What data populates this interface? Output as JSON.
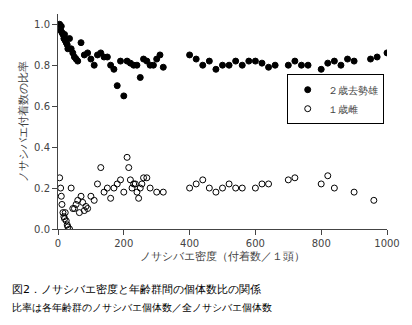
{
  "chart_data": {
    "type": "scatter",
    "xlabel": "ノサシバエ密度（付着数／１頭）",
    "ylabel": "ノサシバエ付着数の比率",
    "annotations": [
      "図2．ノサシバエ密度と年齢群間の個体数比の関係",
      "比率は各年齢群のノサシバエ個体数／全ノサシバエ個体数"
    ],
    "xlim": [
      0,
      1000
    ],
    "ylim": [
      0.0,
      1.05
    ],
    "xticks": [
      0,
      200,
      400,
      600,
      800,
      1000
    ],
    "yticks": [
      {
        "value": 0.0,
        "label": "0.0"
      },
      0.2,
      0.4,
      0.6,
      0.8,
      {
        "value": 1.0,
        "label": "1.0"
      }
    ],
    "grid": false,
    "legend": "right",
    "series": [
      {
        "name": "２歳去勢雄",
        "color": "#000000",
        "marker": "filled",
        "x": [
          5,
          8,
          10,
          12,
          15,
          18,
          20,
          22,
          25,
          28,
          30,
          35,
          40,
          45,
          50,
          55,
          60,
          70,
          80,
          90,
          100,
          110,
          120,
          130,
          140,
          150,
          160,
          170,
          180,
          190,
          200,
          210,
          220,
          230,
          240,
          250,
          260,
          270,
          280,
          290,
          300,
          310,
          320,
          400,
          420,
          440,
          460,
          480,
          500,
          520,
          540,
          560,
          580,
          600,
          620,
          640,
          660,
          700,
          720,
          740,
          760,
          800,
          820,
          840,
          860,
          880,
          900,
          950,
          970,
          1000
        ],
        "values": [
          1.0,
          0.97,
          0.99,
          0.96,
          0.95,
          0.93,
          0.95,
          0.92,
          0.91,
          0.9,
          0.88,
          0.93,
          0.88,
          0.86,
          0.84,
          0.83,
          0.82,
          0.91,
          0.85,
          0.86,
          0.83,
          0.8,
          0.85,
          0.86,
          0.84,
          0.84,
          0.8,
          0.78,
          0.7,
          0.82,
          0.65,
          0.82,
          0.81,
          0.8,
          0.8,
          0.74,
          0.83,
          0.82,
          0.8,
          0.8,
          0.83,
          0.85,
          0.79,
          0.85,
          0.83,
          0.8,
          0.82,
          0.78,
          0.8,
          0.8,
          0.82,
          0.8,
          0.82,
          0.82,
          0.81,
          0.79,
          0.8,
          0.8,
          0.82,
          0.8,
          0.8,
          0.78,
          0.81,
          0.82,
          0.8,
          0.83,
          0.82,
          0.83,
          0.84,
          0.86
        ]
      },
      {
        "name": "１歳雌",
        "color": "#000000",
        "marker": "open",
        "x": [
          5,
          8,
          10,
          12,
          15,
          18,
          20,
          22,
          25,
          28,
          30,
          35,
          40,
          45,
          50,
          55,
          60,
          65,
          70,
          75,
          80,
          85,
          90,
          100,
          110,
          120,
          130,
          140,
          150,
          160,
          170,
          180,
          190,
          200,
          210,
          215,
          220,
          225,
          230,
          235,
          240,
          245,
          250,
          255,
          260,
          270,
          280,
          300,
          320,
          400,
          420,
          440,
          460,
          480,
          500,
          520,
          540,
          560,
          600,
          620,
          640,
          700,
          720,
          800,
          820,
          840,
          900,
          960
        ],
        "values": [
          0.25,
          0.2,
          0.16,
          0.12,
          0.08,
          0.06,
          0.05,
          0.08,
          0.04,
          0.02,
          0.01,
          0.0,
          0.2,
          0.1,
          0.1,
          0.12,
          0.14,
          0.08,
          0.16,
          0.13,
          0.09,
          0.11,
          0.1,
          0.16,
          0.14,
          0.22,
          0.3,
          0.18,
          0.2,
          0.15,
          0.2,
          0.22,
          0.24,
          0.18,
          0.35,
          0.3,
          0.24,
          0.2,
          0.22,
          0.22,
          0.18,
          0.15,
          0.2,
          0.22,
          0.25,
          0.25,
          0.2,
          0.18,
          0.18,
          0.2,
          0.22,
          0.24,
          0.2,
          0.18,
          0.2,
          0.22,
          0.2,
          0.2,
          0.2,
          0.22,
          0.22,
          0.24,
          0.25,
          0.22,
          0.26,
          0.2,
          0.18,
          0.14
        ]
      }
    ]
  }
}
